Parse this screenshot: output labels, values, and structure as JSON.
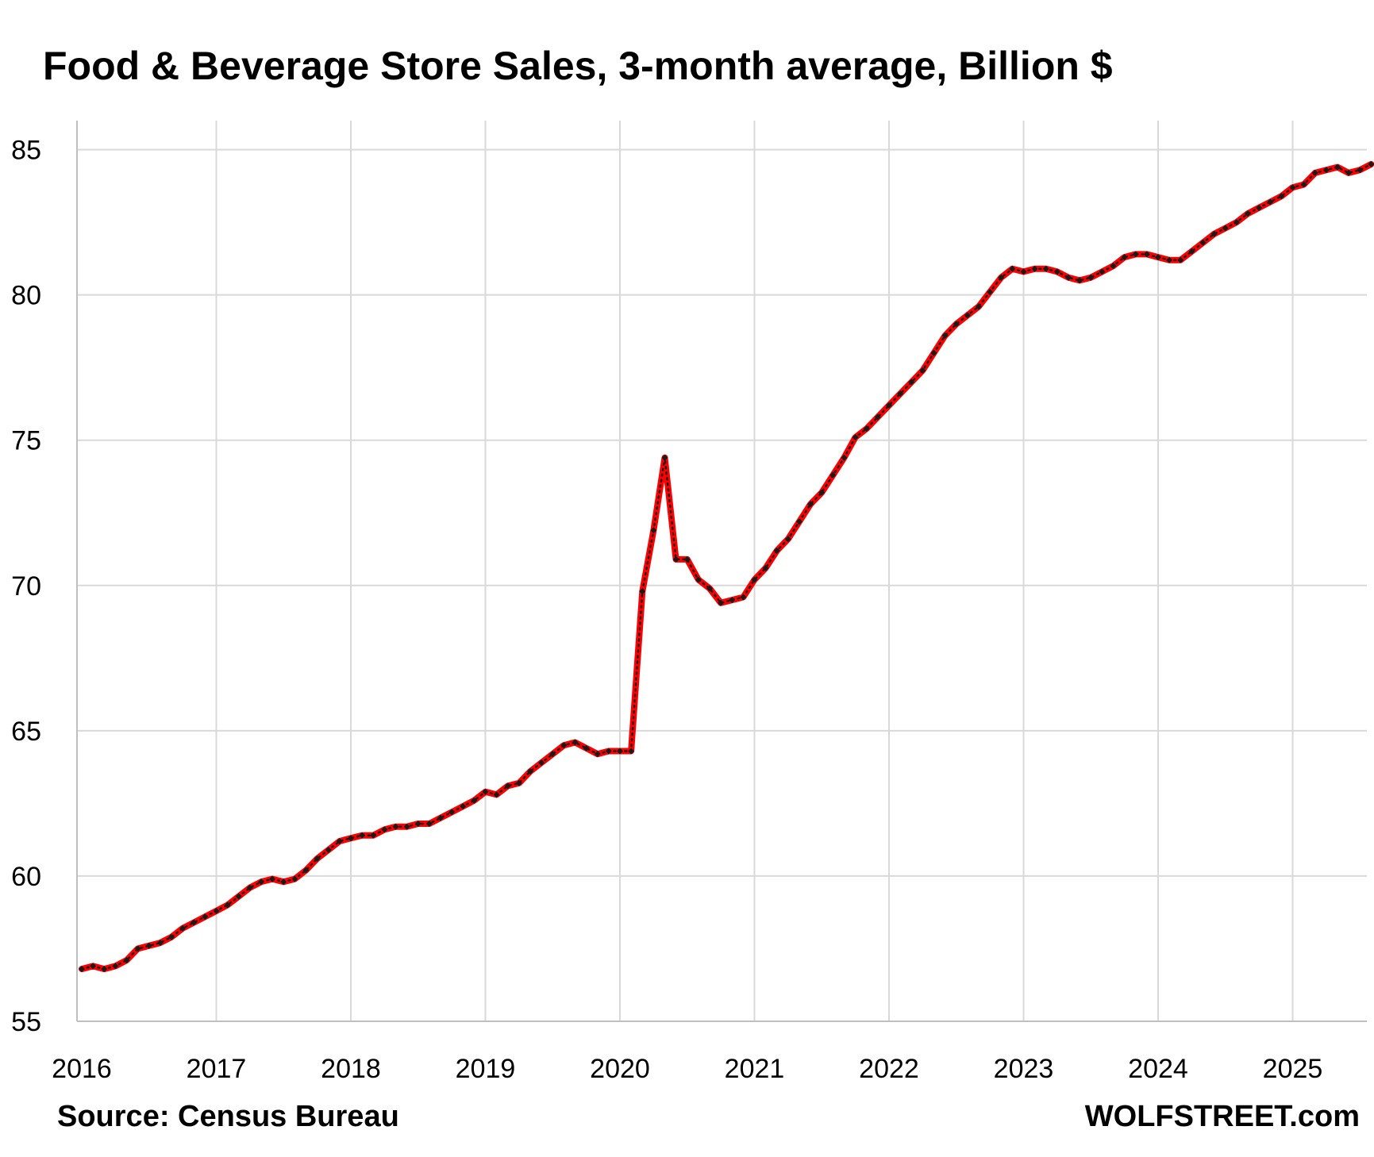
{
  "title": "Food & Beverage Store Sales, 3-month average, Billion $",
  "source": "Source: Census Bureau",
  "brand": "WOLFSTREET.com",
  "colors": {
    "line": "#ff0000",
    "marker": "#1a1a1a",
    "grid": "#d9d9d9",
    "axis": "#bfbfbf"
  },
  "chart_data": {
    "type": "line",
    "title": "Food & Beverage Store Sales, 3-month average, Billion $",
    "xlabel": "",
    "ylabel": "",
    "x_ticks": [
      "2016",
      "2017",
      "2018",
      "2019",
      "2020",
      "2021",
      "2022",
      "2023",
      "2024",
      "2025"
    ],
    "y_ticks": [
      "55",
      "60",
      "65",
      "70",
      "75",
      "80",
      "85"
    ],
    "ylim": [
      55,
      86
    ],
    "grid": true,
    "legend": "none",
    "series": [
      {
        "start": "2016-01",
        "frequency": "monthly",
        "values": [
          56.8,
          56.9,
          56.8,
          56.9,
          57.1,
          57.5,
          57.6,
          57.7,
          57.9,
          58.2,
          58.4,
          58.6,
          58.8,
          59.0,
          59.3,
          59.6,
          59.8,
          59.9,
          59.8,
          59.9,
          60.2,
          60.6,
          60.9,
          61.2,
          61.3,
          61.4,
          61.4,
          61.6,
          61.7,
          61.7,
          61.8,
          61.8,
          62.0,
          62.2,
          62.4,
          62.6,
          62.9,
          62.8,
          63.1,
          63.2,
          63.6,
          63.9,
          64.2,
          64.5,
          64.6,
          64.4,
          64.2,
          64.3,
          64.3,
          64.3,
          69.8,
          71.9,
          74.4,
          70.9,
          70.9,
          70.2,
          69.9,
          69.4,
          69.5,
          69.6,
          70.2,
          70.6,
          71.2,
          71.6,
          72.2,
          72.8,
          73.2,
          73.8,
          74.4,
          75.1,
          75.4,
          75.8,
          76.2,
          76.6,
          77.0,
          77.4,
          78.0,
          78.6,
          79.0,
          79.3,
          79.6,
          80.1,
          80.6,
          80.9,
          80.8,
          80.9,
          80.9,
          80.8,
          80.6,
          80.5,
          80.6,
          80.8,
          81.0,
          81.3,
          81.4,
          81.4,
          81.3,
          81.2,
          81.2,
          81.5,
          81.8,
          82.1,
          82.3,
          82.5,
          82.8,
          83.0,
          83.2,
          83.4,
          83.7,
          83.8,
          84.2,
          84.3,
          84.4,
          84.2,
          84.3,
          84.5
        ]
      }
    ]
  }
}
